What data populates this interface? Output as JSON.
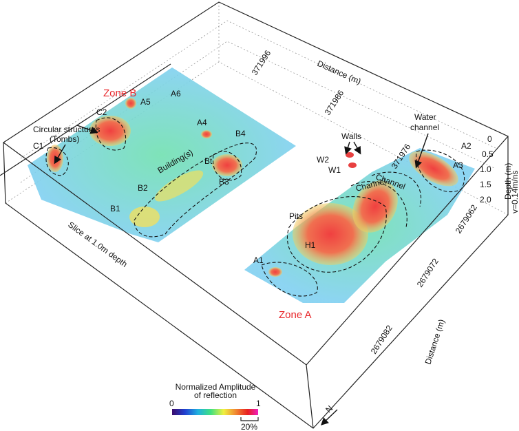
{
  "axes": {
    "top_title": "Distance (m)",
    "top_ticks": [
      "371996",
      "371986",
      "371976"
    ],
    "depth_title": "Depth (m)",
    "velocity": "v=0.14m/ns",
    "depth_ticks": [
      "0",
      "0.5",
      "1.0",
      "1.5",
      "2.0"
    ],
    "right_title": "Distance (m)",
    "right_ticks": [
      "2679062",
      "2679072",
      "2679082"
    ]
  },
  "annotations": {
    "zone_b": "Zone B",
    "zone_a": "Zone A",
    "tombs_line1": "Circular structures",
    "tombs_line2": "(Tombs)",
    "c1": "C1",
    "c2": "C2",
    "a5": "A5",
    "a6": "A6",
    "a4": "A4",
    "b4": "B4",
    "buildings": "Building(s)",
    "bt": "Bt",
    "b2": "B2",
    "b3": "B3",
    "b1": "B1",
    "slice": "Slice at 1.0m depth",
    "walls": "Walls",
    "w2": "W2",
    "w1": "W1",
    "water_line1": "Water",
    "water_line2": "channel",
    "a2": "A2",
    "a3": "A3",
    "channel_1": "Channel",
    "channel_2": "Channel",
    "pits": "Pits",
    "h1": "H1",
    "a1": "A1"
  },
  "legend": {
    "title_line1": "Normalized Amplitude",
    "title_line2": "of reflection",
    "min": "0",
    "max": "1",
    "scale": "20%"
  },
  "north": "N"
}
